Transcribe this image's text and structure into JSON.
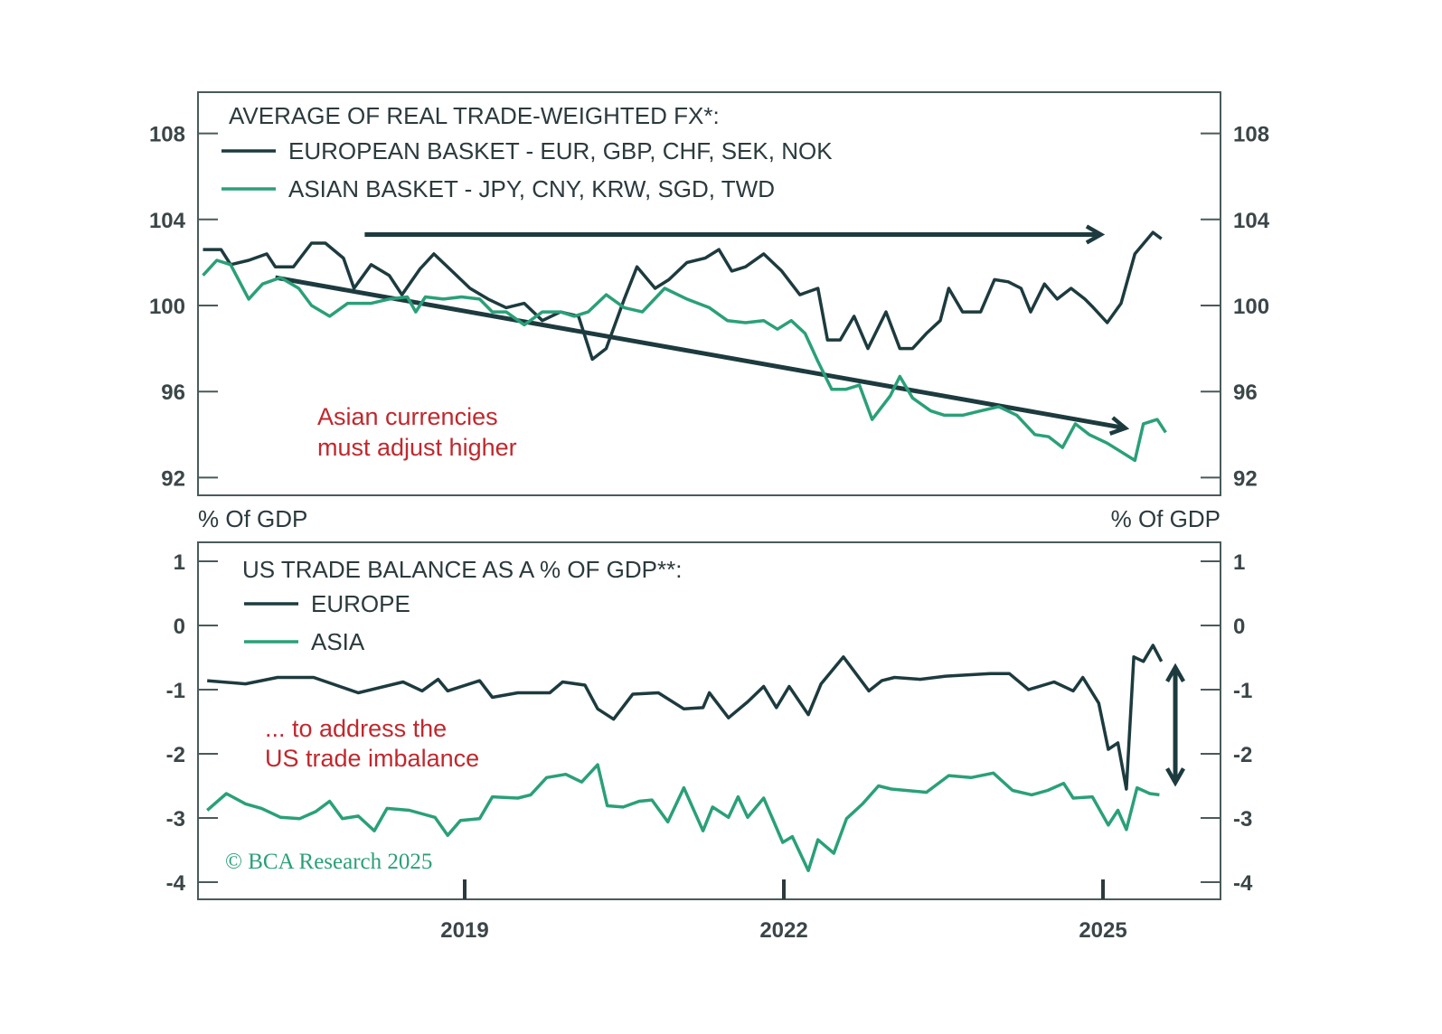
{
  "colors": {
    "europe": "#1d3b3f",
    "asia": "#2aa078",
    "annotation": "#c0282d",
    "frame": "#4a5a5a"
  },
  "copyright": "© BCA Research 2025",
  "chart_data": [
    {
      "type": "line",
      "title": "AVERAGE OF REAL TRADE-WEIGHTED FX*:",
      "ylim": [
        91,
        110.5
      ],
      "yticks": [
        108,
        104,
        100,
        96,
        92
      ],
      "ytick_labels": [
        "108",
        "104",
        "100",
        "96",
        "92"
      ],
      "xlim": [
        2016.5,
        2026.1
      ],
      "legend_placement": "top-left",
      "legend": [
        "EUROPEAN BASKET - EUR, GBP, CHF, SEK, NOK",
        "ASIAN BASKET - JPY, CNY, KRW, SGD, TWD"
      ],
      "annotation": [
        "Asian currencies",
        "must adjust higher"
      ],
      "arrows": [
        {
          "from": [
            2018.06,
            103.3
          ],
          "to": [
            2024.98,
            103.3
          ]
        },
        {
          "from": [
            2017.22,
            101.3
          ],
          "to": [
            2025.21,
            94.3
          ]
        }
      ],
      "series": [
        {
          "name": "EUROPEAN BASKET - EUR, GBP, CHF, SEK, NOK",
          "points": [
            [
              2016.54,
              102.6
            ],
            [
              2016.71,
              102.6
            ],
            [
              2016.8,
              101.9
            ],
            [
              2016.97,
              102.1
            ],
            [
              2017.14,
              102.4
            ],
            [
              2017.22,
              101.8
            ],
            [
              2017.39,
              101.8
            ],
            [
              2017.56,
              102.9
            ],
            [
              2017.69,
              102.9
            ],
            [
              2017.86,
              102.2
            ],
            [
              2017.96,
              100.8
            ],
            [
              2018.12,
              101.9
            ],
            [
              2018.29,
              101.4
            ],
            [
              2018.41,
              100.5
            ],
            [
              2018.58,
              101.7
            ],
            [
              2018.71,
              102.4
            ],
            [
              2018.88,
              101.6
            ],
            [
              2019.05,
              100.8
            ],
            [
              2019.22,
              100.3
            ],
            [
              2019.39,
              99.9
            ],
            [
              2019.56,
              100.1
            ],
            [
              2019.73,
              99.3
            ],
            [
              2019.9,
              99.7
            ],
            [
              2020.07,
              99.5
            ],
            [
              2020.2,
              97.5
            ],
            [
              2020.33,
              98.0
            ],
            [
              2020.5,
              100.3
            ],
            [
              2020.62,
              101.8
            ],
            [
              2020.79,
              100.8
            ],
            [
              2020.92,
              101.2
            ],
            [
              2021.09,
              102.0
            ],
            [
              2021.26,
              102.2
            ],
            [
              2021.39,
              102.6
            ],
            [
              2021.51,
              101.6
            ],
            [
              2021.64,
              101.8
            ],
            [
              2021.81,
              102.4
            ],
            [
              2021.98,
              101.6
            ],
            [
              2022.15,
              100.5
            ],
            [
              2022.32,
              100.8
            ],
            [
              2022.41,
              98.4
            ],
            [
              2022.53,
              98.4
            ],
            [
              2022.66,
              99.5
            ],
            [
              2022.79,
              98.0
            ],
            [
              2022.96,
              99.7
            ],
            [
              2023.09,
              98.0
            ],
            [
              2023.21,
              98.0
            ],
            [
              2023.34,
              98.7
            ],
            [
              2023.47,
              99.3
            ],
            [
              2023.55,
              100.8
            ],
            [
              2023.68,
              99.7
            ],
            [
              2023.85,
              99.7
            ],
            [
              2023.98,
              101.2
            ],
            [
              2024.11,
              101.1
            ],
            [
              2024.23,
              100.8
            ],
            [
              2024.32,
              99.7
            ],
            [
              2024.45,
              101.0
            ],
            [
              2024.57,
              100.3
            ],
            [
              2024.7,
              100.8
            ],
            [
              2024.83,
              100.3
            ],
            [
              2024.91,
              99.9
            ],
            [
              2025.04,
              99.2
            ],
            [
              2025.17,
              100.1
            ],
            [
              2025.3,
              102.4
            ],
            [
              2025.47,
              103.4
            ],
            [
              2025.55,
              103.1
            ]
          ]
        },
        {
          "name": "ASIAN BASKET - JPY, CNY, KRW, SGD, TWD",
          "points": [
            [
              2016.54,
              101.4
            ],
            [
              2016.67,
              102.1
            ],
            [
              2016.8,
              101.9
            ],
            [
              2016.97,
              100.3
            ],
            [
              2017.1,
              101.0
            ],
            [
              2017.27,
              101.3
            ],
            [
              2017.44,
              100.8
            ],
            [
              2017.56,
              100.0
            ],
            [
              2017.73,
              99.5
            ],
            [
              2017.9,
              100.1
            ],
            [
              2018.12,
              100.1
            ],
            [
              2018.29,
              100.3
            ],
            [
              2018.46,
              100.4
            ],
            [
              2018.54,
              99.7
            ],
            [
              2018.63,
              100.4
            ],
            [
              2018.8,
              100.3
            ],
            [
              2018.97,
              100.4
            ],
            [
              2019.14,
              100.3
            ],
            [
              2019.26,
              99.7
            ],
            [
              2019.39,
              99.7
            ],
            [
              2019.56,
              99.1
            ],
            [
              2019.73,
              99.7
            ],
            [
              2019.9,
              99.7
            ],
            [
              2020.03,
              99.5
            ],
            [
              2020.16,
              99.7
            ],
            [
              2020.33,
              100.5
            ],
            [
              2020.5,
              99.9
            ],
            [
              2020.67,
              99.7
            ],
            [
              2020.88,
              100.8
            ],
            [
              2021.09,
              100.3
            ],
            [
              2021.3,
              99.9
            ],
            [
              2021.47,
              99.3
            ],
            [
              2021.64,
              99.2
            ],
            [
              2021.81,
              99.3
            ],
            [
              2021.94,
              98.9
            ],
            [
              2022.07,
              99.3
            ],
            [
              2022.2,
              98.7
            ],
            [
              2022.32,
              97.4
            ],
            [
              2022.45,
              96.1
            ],
            [
              2022.58,
              96.1
            ],
            [
              2022.71,
              96.3
            ],
            [
              2022.83,
              94.7
            ],
            [
              2023.0,
              95.8
            ],
            [
              2023.09,
              96.7
            ],
            [
              2023.21,
              95.7
            ],
            [
              2023.38,
              95.1
            ],
            [
              2023.51,
              94.9
            ],
            [
              2023.68,
              94.9
            ],
            [
              2023.85,
              95.1
            ],
            [
              2024.02,
              95.3
            ],
            [
              2024.19,
              94.9
            ],
            [
              2024.36,
              94.0
            ],
            [
              2024.49,
              93.9
            ],
            [
              2024.62,
              93.4
            ],
            [
              2024.74,
              94.5
            ],
            [
              2024.87,
              94.0
            ],
            [
              2025.04,
              93.6
            ],
            [
              2025.17,
              93.2
            ],
            [
              2025.3,
              92.8
            ],
            [
              2025.38,
              94.5
            ],
            [
              2025.51,
              94.7
            ],
            [
              2025.59,
              94.1
            ]
          ]
        }
      ]
    },
    {
      "type": "line",
      "title": "US TRADE BALANCE AS A % OF GDP**:",
      "ylabel_left": "% Of GDP",
      "ylabel_right": "% Of GDP",
      "ylim": [
        -4.25,
        1.3
      ],
      "yticks": [
        1,
        0,
        -1,
        -2,
        -3,
        -4
      ],
      "ytick_labels": [
        "1",
        "0",
        "-1",
        "-2",
        "-3",
        "-4"
      ],
      "xlim": [
        2016.5,
        2026.1
      ],
      "xticks": [
        2019,
        2022,
        2025
      ],
      "xtick_labels": [
        "2019",
        "2022",
        "2025"
      ],
      "legend_placement": "top-left",
      "legend": [
        "EUROPE",
        "ASIA"
      ],
      "annotation": [
        "... to address the",
        "US trade imbalance"
      ],
      "arrows": [
        {
          "from": [
            2025.68,
            -0.65
          ],
          "to": [
            2025.68,
            -2.45
          ],
          "double": true
        }
      ],
      "series": [
        {
          "name": "EUROPE",
          "points": [
            [
              2016.58,
              -0.86
            ],
            [
              2016.94,
              -0.91
            ],
            [
              2017.24,
              -0.81
            ],
            [
              2017.58,
              -0.81
            ],
            [
              2018.0,
              -1.05
            ],
            [
              2018.42,
              -0.88
            ],
            [
              2018.6,
              -1.02
            ],
            [
              2018.75,
              -0.84
            ],
            [
              2018.84,
              -1.02
            ],
            [
              2019.14,
              -0.86
            ],
            [
              2019.26,
              -1.12
            ],
            [
              2019.5,
              -1.05
            ],
            [
              2019.8,
              -1.05
            ],
            [
              2019.92,
              -0.88
            ],
            [
              2020.13,
              -0.93
            ],
            [
              2020.25,
              -1.3
            ],
            [
              2020.4,
              -1.46
            ],
            [
              2020.58,
              -1.07
            ],
            [
              2020.82,
              -1.05
            ],
            [
              2021.06,
              -1.3
            ],
            [
              2021.24,
              -1.28
            ],
            [
              2021.3,
              -1.05
            ],
            [
              2021.48,
              -1.44
            ],
            [
              2021.66,
              -1.19
            ],
            [
              2021.81,
              -0.95
            ],
            [
              2021.93,
              -1.28
            ],
            [
              2022.05,
              -0.95
            ],
            [
              2022.23,
              -1.39
            ],
            [
              2022.35,
              -0.91
            ],
            [
              2022.56,
              -0.49
            ],
            [
              2022.8,
              -1.02
            ],
            [
              2022.92,
              -0.86
            ],
            [
              2023.04,
              -0.81
            ],
            [
              2023.28,
              -0.84
            ],
            [
              2023.52,
              -0.79
            ],
            [
              2023.94,
              -0.75
            ],
            [
              2024.12,
              -0.75
            ],
            [
              2024.3,
              -1.0
            ],
            [
              2024.54,
              -0.88
            ],
            [
              2024.72,
              -1.02
            ],
            [
              2024.81,
              -0.81
            ],
            [
              2024.96,
              -1.21
            ],
            [
              2025.05,
              -1.93
            ],
            [
              2025.14,
              -1.83
            ],
            [
              2025.22,
              -2.55
            ],
            [
              2025.29,
              -0.49
            ],
            [
              2025.38,
              -0.56
            ],
            [
              2025.47,
              -0.31
            ],
            [
              2025.55,
              -0.56
            ]
          ]
        },
        {
          "name": "ASIA",
          "points": [
            [
              2016.58,
              -2.88
            ],
            [
              2016.76,
              -2.62
            ],
            [
              2016.94,
              -2.78
            ],
            [
              2017.09,
              -2.85
            ],
            [
              2017.27,
              -2.99
            ],
            [
              2017.45,
              -3.01
            ],
            [
              2017.6,
              -2.9
            ],
            [
              2017.73,
              -2.74
            ],
            [
              2017.85,
              -3.01
            ],
            [
              2018.0,
              -2.97
            ],
            [
              2018.15,
              -3.2
            ],
            [
              2018.27,
              -2.85
            ],
            [
              2018.48,
              -2.88
            ],
            [
              2018.72,
              -2.99
            ],
            [
              2018.84,
              -3.27
            ],
            [
              2018.96,
              -3.04
            ],
            [
              2019.14,
              -3.01
            ],
            [
              2019.26,
              -2.67
            ],
            [
              2019.5,
              -2.69
            ],
            [
              2019.62,
              -2.64
            ],
            [
              2019.77,
              -2.37
            ],
            [
              2019.95,
              -2.32
            ],
            [
              2020.1,
              -2.44
            ],
            [
              2020.25,
              -2.17
            ],
            [
              2020.34,
              -2.81
            ],
            [
              2020.49,
              -2.83
            ],
            [
              2020.64,
              -2.74
            ],
            [
              2020.76,
              -2.72
            ],
            [
              2020.91,
              -3.06
            ],
            [
              2021.06,
              -2.53
            ],
            [
              2021.24,
              -3.2
            ],
            [
              2021.33,
              -2.83
            ],
            [
              2021.48,
              -2.99
            ],
            [
              2021.57,
              -2.67
            ],
            [
              2021.66,
              -2.99
            ],
            [
              2021.81,
              -2.69
            ],
            [
              2021.99,
              -3.38
            ],
            [
              2022.08,
              -3.29
            ],
            [
              2022.23,
              -3.82
            ],
            [
              2022.32,
              -3.34
            ],
            [
              2022.47,
              -3.55
            ],
            [
              2022.59,
              -3.01
            ],
            [
              2022.74,
              -2.78
            ],
            [
              2022.89,
              -2.5
            ],
            [
              2023.01,
              -2.55
            ],
            [
              2023.34,
              -2.6
            ],
            [
              2023.55,
              -2.34
            ],
            [
              2023.76,
              -2.37
            ],
            [
              2023.97,
              -2.3
            ],
            [
              2024.15,
              -2.57
            ],
            [
              2024.33,
              -2.64
            ],
            [
              2024.48,
              -2.57
            ],
            [
              2024.63,
              -2.46
            ],
            [
              2024.72,
              -2.69
            ],
            [
              2024.9,
              -2.67
            ],
            [
              2025.05,
              -3.11
            ],
            [
              2025.14,
              -2.88
            ],
            [
              2025.22,
              -3.18
            ],
            [
              2025.32,
              -2.53
            ],
            [
              2025.44,
              -2.62
            ],
            [
              2025.53,
              -2.64
            ]
          ]
        }
      ]
    }
  ]
}
